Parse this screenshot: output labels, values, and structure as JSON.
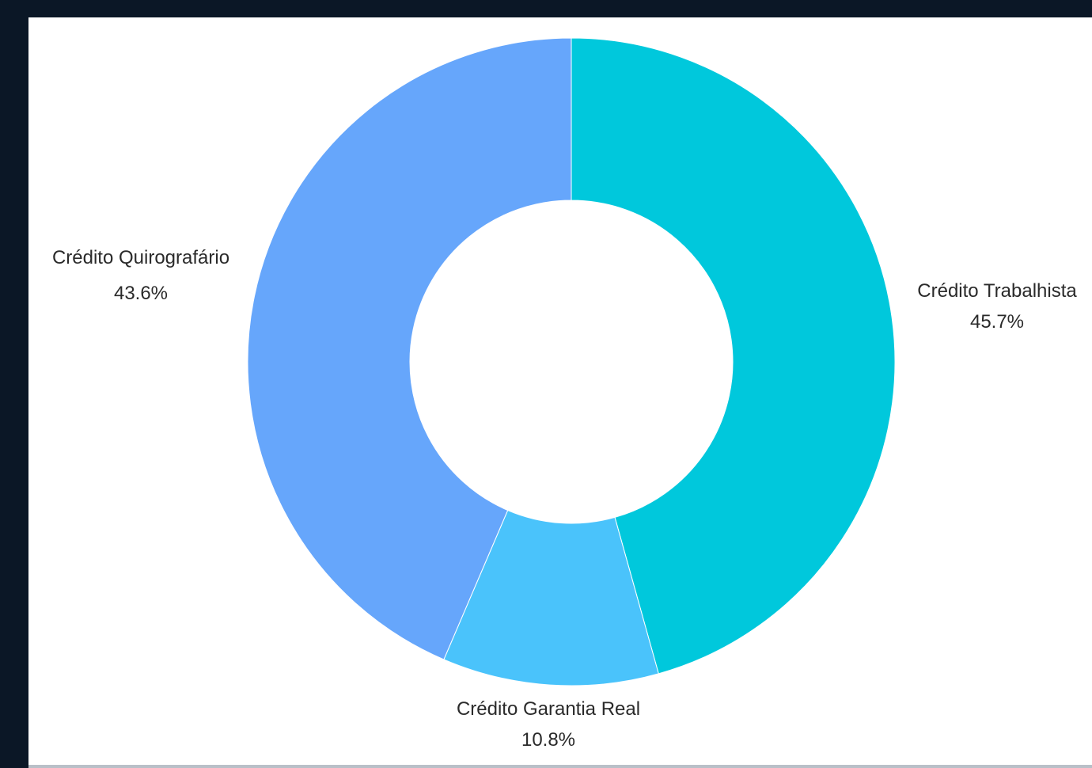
{
  "chart_data": {
    "type": "pie",
    "donut": true,
    "title": "",
    "slices": [
      {
        "label": "Crédito Trabalhista",
        "value": 45.7,
        "display": "45.7%",
        "color": "#00c8dc"
      },
      {
        "label": "Crédito Garantia Real",
        "value": 10.8,
        "display": "10.8%",
        "color": "#4ac3fb"
      },
      {
        "label": "Crédito Quirografário",
        "value": 43.6,
        "display": "43.6%",
        "color": "#66a6fb"
      }
    ],
    "legend": "none",
    "start": "top",
    "direction": "clockwise"
  }
}
